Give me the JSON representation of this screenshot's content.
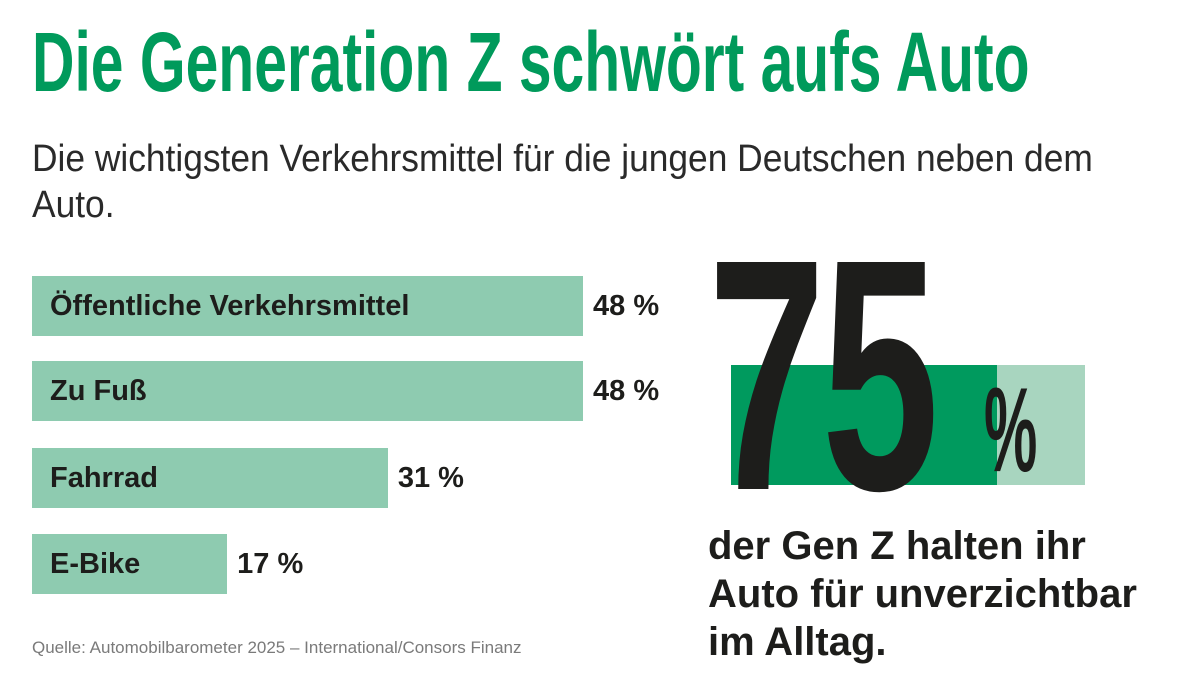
{
  "title": "Die Generation Z schwört aufs Auto",
  "subtitle": "Die wichtigsten Verkehrsmittel für die jungen Deutschen neben dem Auto.",
  "source": "Quelle: Automobilbarometer 2025 – International/Consors Finanz",
  "colors": {
    "title": "#009a5b",
    "bar": "#8ecbb0",
    "highlight": "#009a5e",
    "highlight_rest": "#a8d5bf"
  },
  "chart_data": {
    "type": "bar",
    "orientation": "horizontal",
    "categories": [
      "Öffentliche Verkehrsmittel",
      "Zu Fuß",
      "Fahrrad",
      "E-Bike"
    ],
    "values": [
      48,
      48,
      31,
      17
    ],
    "value_labels": [
      "48 %",
      "48 %",
      "31 %",
      "17 %"
    ],
    "unit": "%"
  },
  "highlight": {
    "number": "75",
    "percent_sign": "%",
    "value": 75,
    "text": [
      "der Gen Z halten ihr",
      "Auto für unverzichtbar",
      "im Alltag."
    ]
  }
}
